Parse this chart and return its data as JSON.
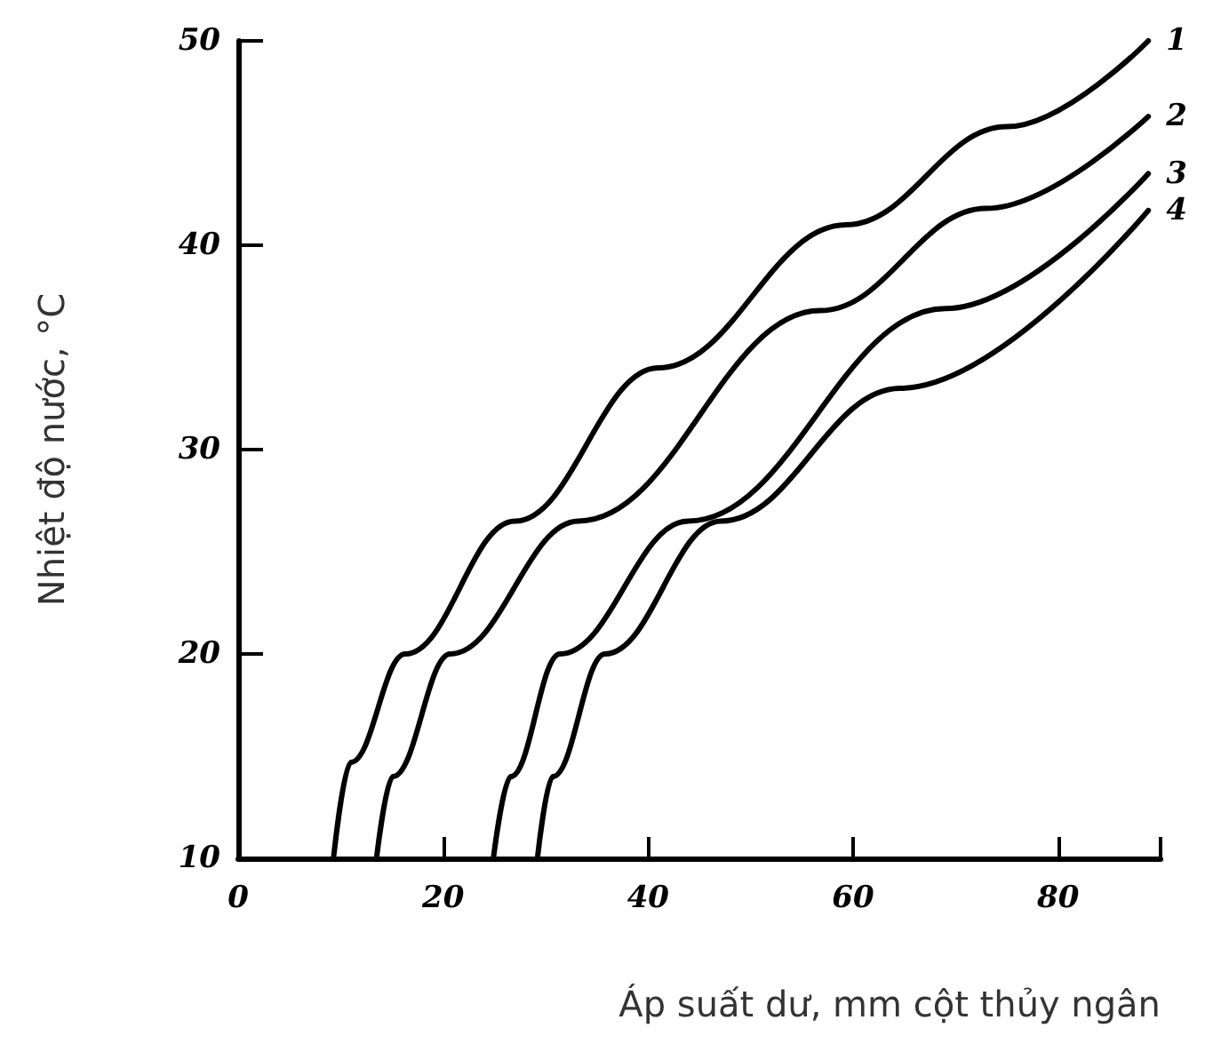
{
  "chart_data": {
    "type": "line",
    "xlabel": "Áp suất dư, mm cột thủy ngân",
    "ylabel": "Nhiệt độ nước, °C",
    "xlim": [
      0,
      90
    ],
    "ylim": [
      10,
      50
    ],
    "xticks": [
      0,
      20,
      40,
      60,
      80,
      {
        "value": 90,
        "label": null
      }
    ],
    "yticks": [
      10,
      20,
      30,
      40,
      50
    ],
    "grid": false,
    "legend": false,
    "marker": "none",
    "line_style": "solid",
    "series": [
      {
        "name": "1",
        "color": "#000000",
        "x": [
          9.3,
          11,
          16.3,
          27,
          41,
          59.3,
          75,
          88.8
        ],
        "values": [
          10,
          14.7,
          20,
          26.5,
          34,
          41,
          45.8,
          50
        ]
      },
      {
        "name": "2",
        "color": "#000000",
        "x": [
          13.5,
          15.1,
          20.7,
          33.2,
          56.8,
          73,
          88.8
        ],
        "values": [
          10,
          14,
          20,
          26.5,
          36.8,
          41.8,
          46.3
        ]
      },
      {
        "name": "3",
        "color": "#000000",
        "x": [
          24.9,
          26.6,
          31.4,
          43.9,
          69,
          88.8
        ],
        "values": [
          10,
          14,
          20,
          26.5,
          36.9,
          43.5
        ]
      },
      {
        "name": "4",
        "color": "#000000",
        "x": [
          29.2,
          30.7,
          35.8,
          47.1,
          64.6,
          88.8
        ],
        "values": [
          10,
          14,
          20,
          26.5,
          33,
          41.7
        ]
      }
    ]
  }
}
